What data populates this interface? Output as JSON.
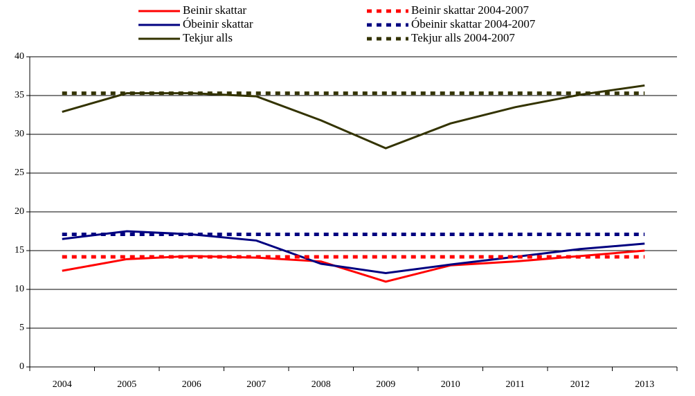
{
  "chart_data": {
    "type": "line",
    "categories": [
      "2004",
      "2005",
      "2006",
      "2007",
      "2008",
      "2009",
      "2010",
      "2011",
      "2012",
      "2013"
    ],
    "ylim": [
      0,
      40
    ],
    "yticks": [
      0,
      5,
      10,
      15,
      20,
      25,
      30,
      35,
      40
    ],
    "grid": true,
    "series": [
      {
        "name": "Beinir skattar",
        "color": "#ff0000",
        "style": "solid",
        "values": [
          12.4,
          13.9,
          14.3,
          14.1,
          13.6,
          11.0,
          13.1,
          13.6,
          14.3,
          15.0
        ]
      },
      {
        "name": "Óbeinir skattar",
        "color": "#000080",
        "style": "solid",
        "values": [
          16.5,
          17.5,
          17.1,
          16.3,
          13.3,
          12.1,
          13.2,
          14.2,
          15.2,
          15.9
        ]
      },
      {
        "name": "Tekjur alls",
        "color": "#333300",
        "style": "solid",
        "values": [
          32.9,
          35.3,
          35.3,
          34.9,
          31.8,
          28.2,
          31.4,
          33.5,
          35.1,
          36.3
        ]
      },
      {
        "name": "Beinir skattar 2004-2007",
        "color": "#ff0000",
        "style": "dotted",
        "values": [
          14.2,
          14.2,
          14.2,
          14.2,
          14.2,
          14.2,
          14.2,
          14.2,
          14.2,
          14.2
        ]
      },
      {
        "name": "Óbeinir skattar 2004-2007",
        "color": "#000080",
        "style": "dotted",
        "values": [
          17.1,
          17.1,
          17.1,
          17.1,
          17.1,
          17.1,
          17.1,
          17.1,
          17.1,
          17.1
        ]
      },
      {
        "name": "Tekjur alls 2004-2007",
        "color": "#333300",
        "style": "dotted",
        "values": [
          35.3,
          35.3,
          35.3,
          35.3,
          35.3,
          35.3,
          35.3,
          35.3,
          35.3,
          35.3
        ]
      }
    ]
  }
}
